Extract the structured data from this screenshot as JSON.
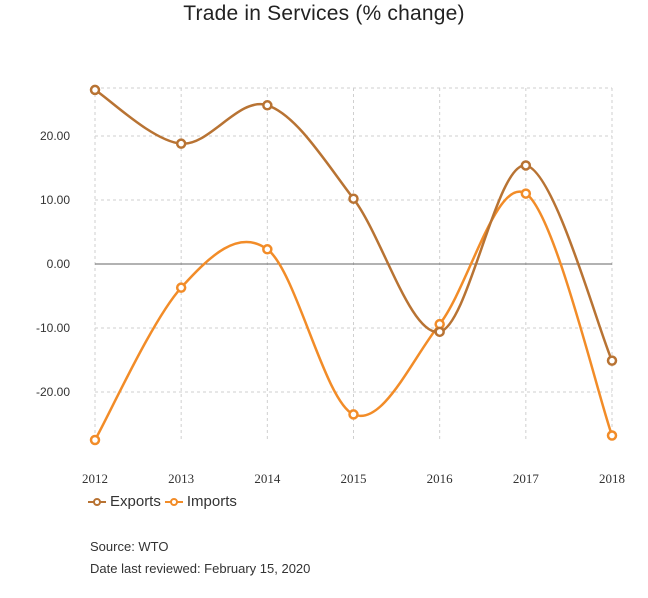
{
  "chart_data": {
    "type": "line",
    "title": "Trade in Services (% change)",
    "xlabel": "",
    "ylabel": "",
    "categories": [
      "2012",
      "2013",
      "2014",
      "2015",
      "2016",
      "2017",
      "2018"
    ],
    "series": [
      {
        "name": "Exports",
        "color": "#b87333",
        "values": [
          27.2,
          18.8,
          24.8,
          10.2,
          -10.6,
          15.4,
          -15.1
        ]
      },
      {
        "name": "Imports",
        "color": "#f28c28",
        "values": [
          -27.5,
          -3.7,
          2.3,
          -23.5,
          -9.4,
          11.0,
          -26.8
        ]
      }
    ],
    "yticks": [
      20,
      10,
      0,
      -10,
      -20
    ],
    "ytick_labels": [
      "20.00",
      "10.00",
      "0.00",
      "-10.00",
      "-20.00"
    ],
    "ylim": [
      -27.5,
      27.5
    ],
    "grid": true,
    "legend_position": "bottom-left"
  },
  "footer": {
    "source": "Source: WTO",
    "date_reviewed": "Date last reviewed: February 15, 2020"
  }
}
